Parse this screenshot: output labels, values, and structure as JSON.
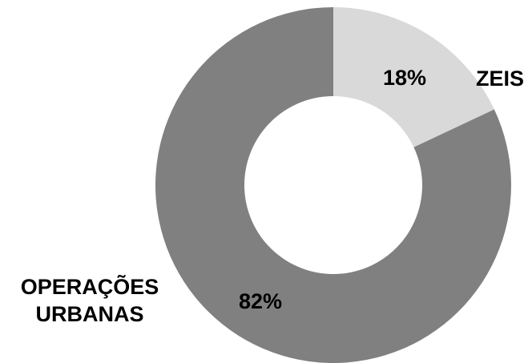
{
  "chart_data": {
    "type": "pie",
    "donut": true,
    "title": "",
    "slices": [
      {
        "label": "ZEIS",
        "label_lines": [
          "ZEIS"
        ],
        "value": 18,
        "value_label": "18%",
        "color": "#d9d9d9"
      },
      {
        "label": "OPERAÇÕES URBANAS",
        "label_lines": [
          "OPERAÇÕES",
          "URBANAS"
        ],
        "value": 82,
        "value_label": "82%",
        "color": "#808080"
      }
    ],
    "start_angle": "12 o'clock",
    "direction": "clockwise",
    "legend": "none (category labels placed beside slices)"
  }
}
